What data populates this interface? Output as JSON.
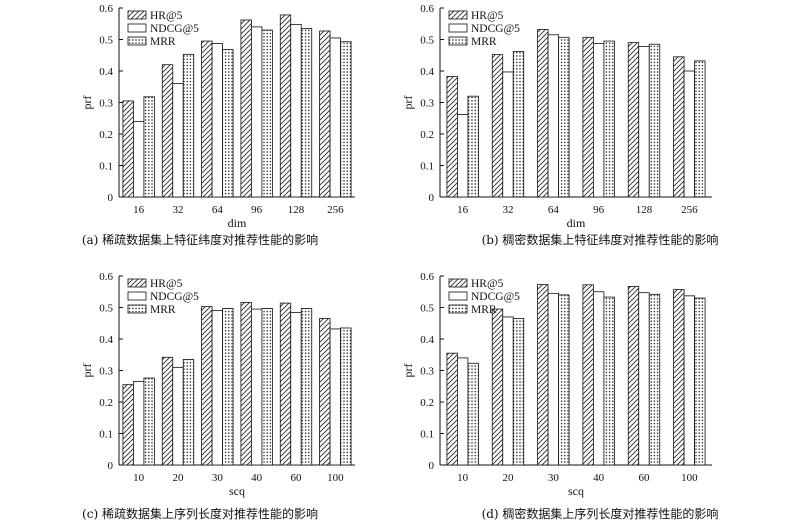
{
  "chart_data": [
    {
      "type": "bar",
      "caption": "(a) 稀疏数据集上特征纬度对推荐性能的影响",
      "xlabel": "dim",
      "ylabel": "prf",
      "categories": [
        "16",
        "32",
        "64",
        "96",
        "128",
        "256"
      ],
      "ylim": [
        0,
        0.6
      ],
      "yticks": [
        "0",
        "0.1",
        "0.2",
        "0.3",
        "0.4",
        "0.5",
        "0.6"
      ],
      "legend_position": "top-left",
      "series": [
        {
          "name": "HR@5",
          "pattern": "hatch",
          "values": [
            0.305,
            0.42,
            0.495,
            0.562,
            0.578,
            0.527
          ]
        },
        {
          "name": "NDCG@5",
          "pattern": "blank",
          "values": [
            0.24,
            0.36,
            0.487,
            0.54,
            0.548,
            0.505
          ]
        },
        {
          "name": "MRR",
          "pattern": "dots",
          "values": [
            0.318,
            0.453,
            0.468,
            0.53,
            0.535,
            0.493
          ]
        }
      ]
    },
    {
      "type": "bar",
      "caption": "(b) 稠密数据集上特征纬度对推荐性能的影响",
      "xlabel": "dim",
      "ylabel": "prf",
      "categories": [
        "16",
        "32",
        "64",
        "96",
        "128",
        "256"
      ],
      "ylim": [
        0,
        0.6
      ],
      "yticks": [
        "0",
        "0.1",
        "0.2",
        "0.3",
        "0.4",
        "0.5",
        "0.6"
      ],
      "legend_position": "top-left",
      "series": [
        {
          "name": "HR@5",
          "pattern": "hatch",
          "values": [
            0.383,
            0.452,
            0.532,
            0.507,
            0.49,
            0.445
          ]
        },
        {
          "name": "NDCG@5",
          "pattern": "blank",
          "values": [
            0.262,
            0.397,
            0.515,
            0.487,
            0.478,
            0.4
          ]
        },
        {
          "name": "MRR",
          "pattern": "dots",
          "values": [
            0.32,
            0.462,
            0.507,
            0.495,
            0.485,
            0.432
          ]
        }
      ]
    },
    {
      "type": "bar",
      "caption": "(c) 稀疏数据集上序列长度对推荐性能的影响",
      "xlabel": "scq",
      "ylabel": "prf",
      "categories": [
        "10",
        "20",
        "30",
        "40",
        "60",
        "100"
      ],
      "ylim": [
        0,
        0.6
      ],
      "yticks": [
        "0",
        "0.1",
        "0.2",
        "0.3",
        "0.4",
        "0.5",
        "0.6"
      ],
      "legend_position": "top-left",
      "series": [
        {
          "name": "HR@5",
          "pattern": "hatch",
          "values": [
            0.255,
            0.342,
            0.503,
            0.516,
            0.514,
            0.465
          ]
        },
        {
          "name": "NDCG@5",
          "pattern": "blank",
          "values": [
            0.265,
            0.31,
            0.49,
            0.495,
            0.484,
            0.432
          ]
        },
        {
          "name": "MRR",
          "pattern": "dots",
          "values": [
            0.276,
            0.335,
            0.497,
            0.497,
            0.497,
            0.435
          ]
        }
      ]
    },
    {
      "type": "bar",
      "caption": "(d) 稠密数据集上序列长度对推荐性能的影响",
      "xlabel": "scq",
      "ylabel": "prf",
      "categories": [
        "10",
        "20",
        "30",
        "40",
        "60",
        "100"
      ],
      "ylim": [
        0,
        0.6
      ],
      "yticks": [
        "0",
        "0.1",
        "0.2",
        "0.3",
        "0.4",
        "0.5",
        "0.6"
      ],
      "legend_position": "top-left",
      "series": [
        {
          "name": "HR@5",
          "pattern": "hatch",
          "values": [
            0.355,
            0.495,
            0.573,
            0.572,
            0.567,
            0.557
          ]
        },
        {
          "name": "NDCG@5",
          "pattern": "blank",
          "values": [
            0.34,
            0.47,
            0.545,
            0.55,
            0.547,
            0.537
          ]
        },
        {
          "name": "MRR",
          "pattern": "dots",
          "values": [
            0.323,
            0.465,
            0.54,
            0.533,
            0.542,
            0.53
          ]
        }
      ]
    }
  ]
}
